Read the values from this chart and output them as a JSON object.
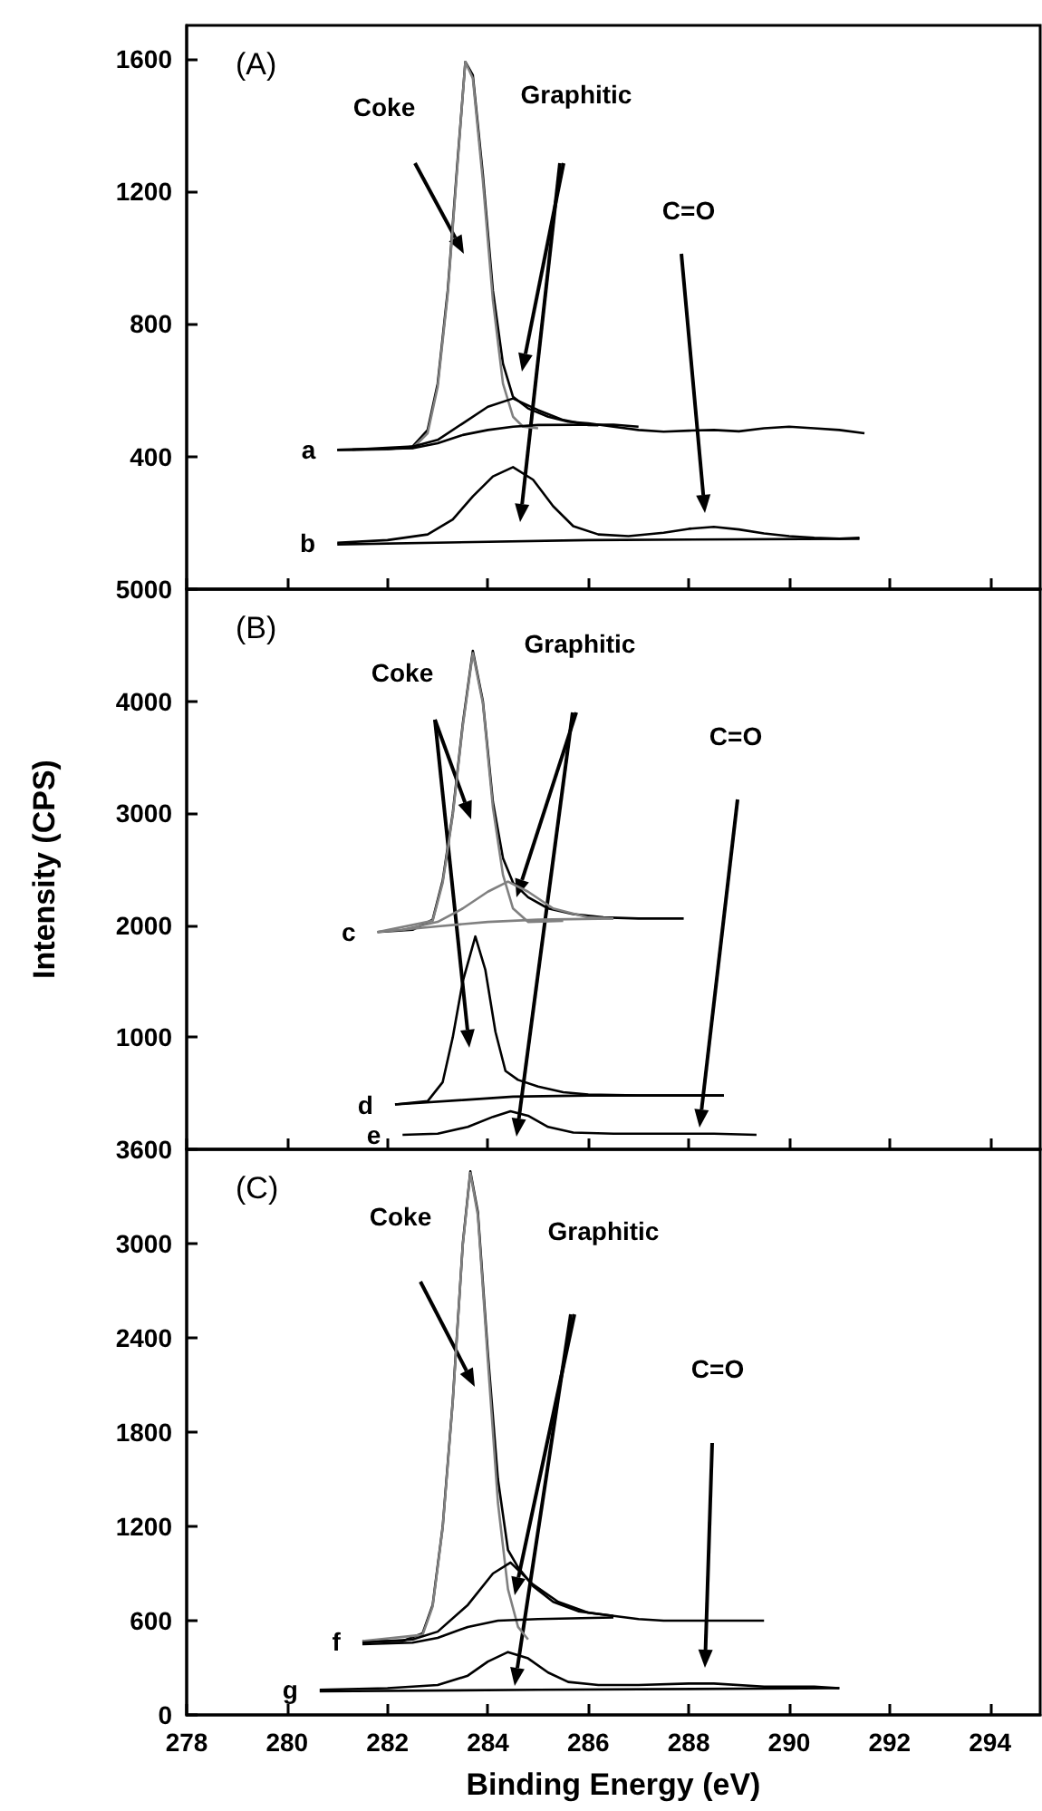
{
  "chart_data": [
    {
      "type": "line",
      "title": "(A)",
      "xlim": [
        278,
        295
      ],
      "xticks": [
        278,
        280,
        282,
        284,
        286,
        288,
        290,
        292,
        294
      ],
      "ylim": [
        0,
        1700
      ],
      "yticks": [
        400,
        800,
        1200,
        1600
      ],
      "tick_labels": "y",
      "annotations": [
        "Coke",
        "Graphitic",
        "C=O"
      ],
      "series": [
        {
          "name": "a",
          "color": "#000000",
          "x": [
            281.0,
            282.0,
            282.5,
            282.8,
            283.0,
            283.2,
            283.4,
            283.55,
            283.7,
            283.9,
            284.1,
            284.3,
            284.5,
            284.8,
            285.2,
            285.6,
            286.0,
            286.5,
            287,
            287.5,
            288,
            288.5,
            289,
            289.5,
            290,
            290.5,
            291,
            291.5
          ],
          "values": [
            420,
            422,
            430,
            480,
            620,
            900,
            1300,
            1590,
            1550,
            1250,
            900,
            680,
            580,
            545,
            520,
            505,
            500,
            490,
            480,
            475,
            478,
            480,
            476,
            485,
            490,
            485,
            480,
            470
          ]
        },
        {
          "color": "#808080",
          "x": [
            281,
            282.5,
            282.8,
            283,
            283.2,
            283.4,
            283.55,
            283.7,
            283.9,
            284.1,
            284.3,
            284.5,
            284.7,
            285
          ],
          "values": [
            420,
            425,
            470,
            610,
            890,
            1290,
            1590,
            1540,
            1230,
            870,
            620,
            520,
            490,
            485
          ]
        },
        {
          "color": "#000000",
          "x": [
            281.3,
            282.5,
            283,
            283.5,
            284,
            284.5,
            285,
            285.5,
            286,
            286.2
          ],
          "values": [
            421,
            430,
            450,
            500,
            550,
            575,
            540,
            510,
            495,
            494
          ]
        },
        {
          "color": "#000000",
          "x": [
            281,
            282.5,
            283,
            283.5,
            284,
            284.5,
            285,
            286.5,
            287
          ],
          "values": [
            420,
            425,
            440,
            465,
            480,
            490,
            495,
            496,
            490
          ]
        },
        {
          "name": "b",
          "color": "#000000",
          "x": [
            281.0,
            282,
            282.8,
            283.3,
            283.7,
            284.1,
            284.5,
            284.9,
            285.3,
            285.7,
            286.2,
            286.8,
            287.5,
            288,
            288.5,
            289,
            289.5,
            290,
            290.5,
            291,
            291.4
          ],
          "values": [
            140,
            148,
            165,
            210,
            280,
            340,
            368,
            330,
            250,
            190,
            165,
            160,
            170,
            182,
            188,
            180,
            168,
            160,
            155,
            152,
            155
          ]
        },
        {
          "color": "#000000",
          "x": [
            281,
            286,
            291.4
          ],
          "values": [
            135,
            148,
            152
          ]
        }
      ]
    },
    {
      "type": "line",
      "title": "(B)",
      "ylabel": "Intensity (CPS)",
      "xlim": [
        278,
        295
      ],
      "xticks": [
        278,
        280,
        282,
        284,
        286,
        288,
        290,
        292,
        294
      ],
      "ylim": [
        0,
        5000
      ],
      "yticks": [
        1000,
        2000,
        3000,
        4000,
        5000
      ],
      "tick_labels": "y",
      "annotations": [
        "Coke",
        "Graphitic",
        "C=O"
      ],
      "series": [
        {
          "name": "c",
          "color": "#000000",
          "x": [
            281.8,
            282.5,
            282.9,
            283.1,
            283.3,
            283.5,
            283.7,
            283.9,
            284.1,
            284.3,
            284.5,
            284.8,
            285.2,
            285.7,
            286.3,
            287,
            287.9
          ],
          "values": [
            1940,
            1960,
            2050,
            2400,
            3000,
            3800,
            4450,
            4000,
            3100,
            2600,
            2380,
            2250,
            2150,
            2100,
            2070,
            2060,
            2060
          ]
        },
        {
          "color": "#808080",
          "x": [
            281.8,
            282.9,
            283.1,
            283.3,
            283.5,
            283.7,
            283.9,
            284.1,
            284.3,
            284.5,
            284.8,
            285.5
          ],
          "values": [
            1940,
            2040,
            2380,
            2980,
            3780,
            4430,
            3980,
            3050,
            2450,
            2150,
            2030,
            2040
          ]
        },
        {
          "color": "#808080",
          "x": [
            282.3,
            283,
            283.5,
            284,
            284.4,
            284.8,
            285.3,
            286,
            286.5
          ],
          "values": [
            1960,
            2030,
            2150,
            2300,
            2390,
            2300,
            2150,
            2070,
            2060
          ]
        },
        {
          "color": "#808080",
          "x": [
            281.8,
            283,
            284,
            285,
            286.5
          ],
          "values": [
            1940,
            1990,
            2030,
            2050,
            2060
          ]
        },
        {
          "name": "d",
          "color": "#000000",
          "x": [
            282.15,
            282.8,
            283.1,
            283.3,
            283.5,
            283.75,
            283.95,
            284.15,
            284.35,
            284.6,
            285,
            285.5,
            286,
            287,
            288,
            288.7
          ],
          "values": [
            400,
            430,
            600,
            1000,
            1500,
            1900,
            1600,
            1050,
            700,
            620,
            560,
            510,
            490,
            480,
            480,
            480
          ]
        },
        {
          "color": "#000000",
          "x": [
            282.15,
            283.5,
            284.5,
            286,
            288.7
          ],
          "values": [
            400,
            440,
            470,
            480,
            480
          ]
        },
        {
          "name": "e",
          "color": "#000000",
          "x": [
            282.3,
            283,
            283.6,
            284.1,
            284.45,
            284.8,
            285.2,
            285.7,
            286.5,
            287.5,
            288.5,
            289.35
          ],
          "values": [
            130,
            140,
            200,
            290,
            340,
            300,
            200,
            150,
            140,
            140,
            140,
            130
          ]
        }
      ]
    },
    {
      "type": "line",
      "title": "(C)",
      "xlabel": "Binding Energy (eV)",
      "xlim": [
        278,
        295
      ],
      "xticks": [
        278,
        280,
        282,
        284,
        286,
        288,
        290,
        292,
        294
      ],
      "ylim": [
        0,
        3600
      ],
      "yticks": [
        0,
        600,
        1200,
        1800,
        2400,
        3000,
        3600
      ],
      "annotations": [
        "Coke",
        "Graphitic",
        "C=O"
      ],
      "series": [
        {
          "name": "f",
          "color": "#000000",
          "x": [
            281.5,
            282.3,
            282.7,
            282.9,
            283.1,
            283.3,
            283.5,
            283.65,
            283.8,
            284.0,
            284.2,
            284.4,
            284.6,
            284.9,
            285.3,
            285.8,
            286.5,
            287,
            287.5,
            288,
            288.5,
            289,
            289.5
          ],
          "values": [
            470,
            470,
            520,
            700,
            1200,
            2000,
            3000,
            3460,
            3200,
            2300,
            1500,
            1050,
            940,
            820,
            720,
            660,
            630,
            610,
            600,
            600,
            600,
            600,
            600
          ]
        },
        {
          "color": "#808080",
          "x": [
            281.5,
            282.7,
            282.9,
            283.1,
            283.3,
            283.5,
            283.65,
            283.8,
            284.0,
            284.2,
            284.4,
            284.6,
            284.8
          ],
          "values": [
            470,
            510,
            690,
            1190,
            1990,
            2990,
            3450,
            3180,
            2250,
            1350,
            800,
            560,
            480
          ]
        },
        {
          "color": "#000000",
          "x": [
            281.5,
            282.5,
            283,
            283.6,
            284.1,
            284.45,
            284.9,
            285.4,
            286,
            286.5
          ],
          "values": [
            460,
            480,
            530,
            700,
            900,
            970,
            830,
            720,
            650,
            630
          ]
        },
        {
          "color": "#000000",
          "x": [
            281.5,
            282.5,
            283,
            283.6,
            284.2,
            285,
            286.5
          ],
          "values": [
            450,
            460,
            490,
            560,
            600,
            610,
            620
          ]
        },
        {
          "name": "g",
          "color": "#000000",
          "x": [
            280.65,
            282,
            283,
            283.6,
            284,
            284.4,
            284.8,
            285.2,
            285.6,
            286.2,
            287,
            288,
            288.5,
            289.5,
            290.5,
            291
          ],
          "values": [
            160,
            170,
            190,
            250,
            340,
            400,
            360,
            270,
            210,
            190,
            190,
            200,
            200,
            180,
            180,
            170
          ]
        },
        {
          "color": "#000000",
          "x": [
            280.65,
            285,
            291
          ],
          "values": [
            150,
            160,
            170
          ]
        }
      ]
    }
  ]
}
